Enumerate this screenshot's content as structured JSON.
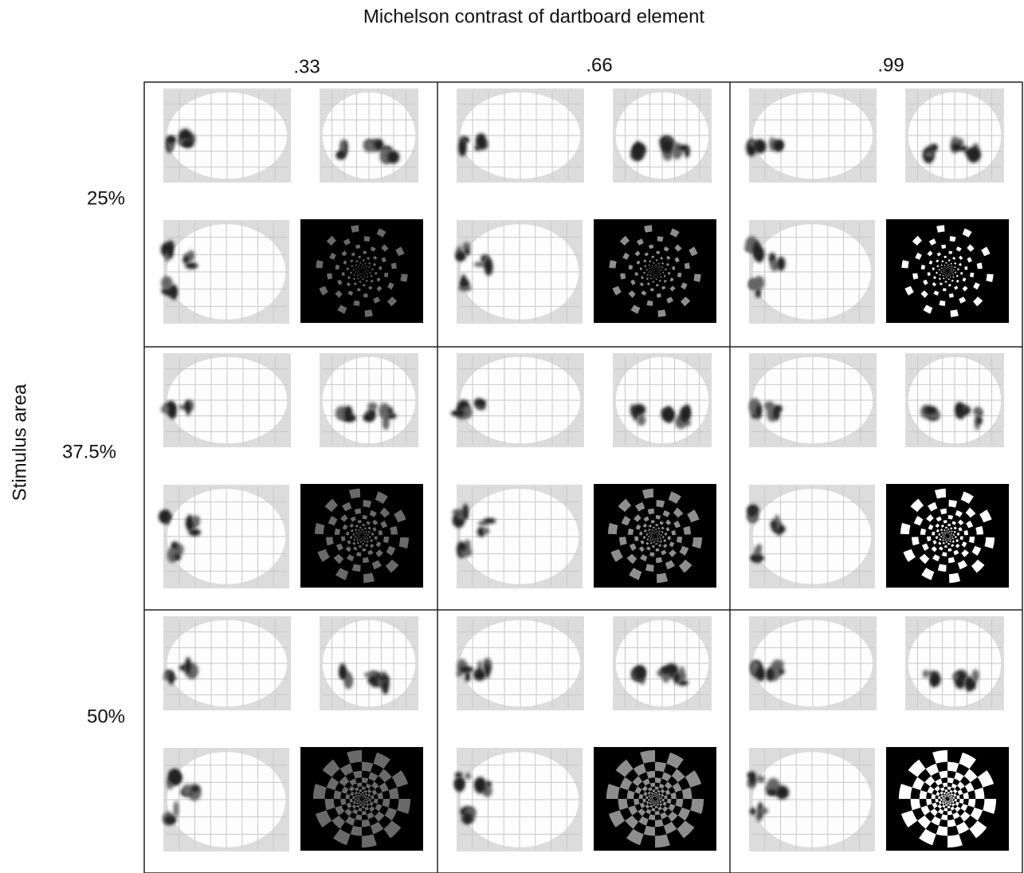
{
  "title": "Michelson contrast of dartboard element",
  "columns": [
    ".33",
    ".66",
    ".99"
  ],
  "row_axis_label": "Stimulus area",
  "rows": [
    "25%",
    "37.5%",
    "50%"
  ]
}
